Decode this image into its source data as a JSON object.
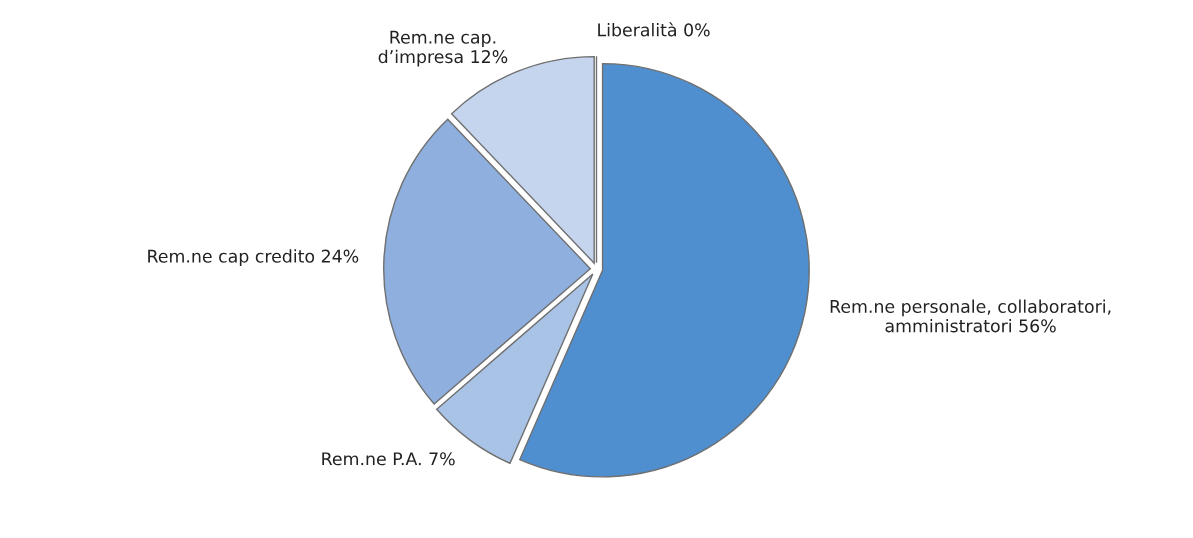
{
  "chart_data": {
    "type": "pie",
    "categories": [
      "Rem.ne personale, collaboratori,\namministratori 56%",
      "Rem.ne P.A. 7%",
      "Rem.ne cap credito 24%",
      "Rem.ne cap.\nd’impresa 12%",
      "Liberalità 0%"
    ],
    "values": [
      56,
      7,
      24,
      12,
      0
    ],
    "colors": [
      "#4f8fcf",
      "#a9c3e6",
      "#8fb0df",
      "#c5d5ee",
      "#b8b8b8"
    ]
  }
}
